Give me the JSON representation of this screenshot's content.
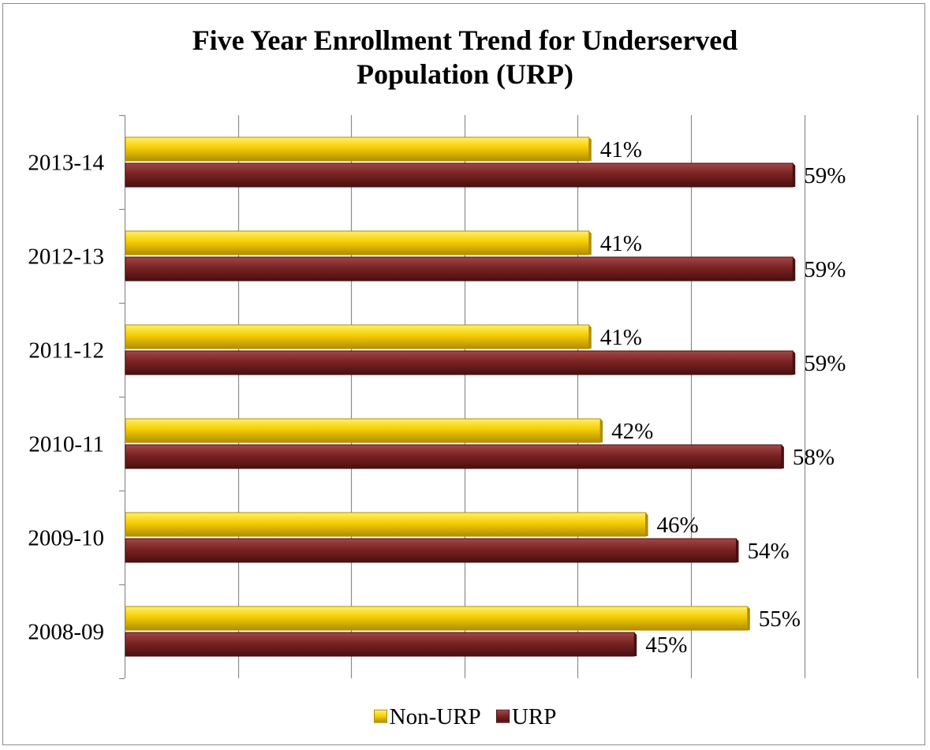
{
  "colors": {
    "non_urp": "#f5cc00",
    "non_urp_light": "#fff06a",
    "non_urp_dark": "#b08d00",
    "urp": "#7a2322",
    "urp_light": "#a14848",
    "urp_dark": "#4a0f0f",
    "grid": "#8c8c8c"
  },
  "chart_data": {
    "type": "bar",
    "orientation": "horizontal",
    "title": [
      "Five Year  Enrollment Trend for Underserved",
      "Population (URP)"
    ],
    "categories": [
      "2013-14",
      "2012-13",
      "2011-12",
      "2010-11",
      "2009-10",
      "2008-09"
    ],
    "series": [
      {
        "name": "Non-URP",
        "values": [
          41,
          41,
          41,
          42,
          46,
          55
        ],
        "labels": [
          "41%",
          "41%",
          "41%",
          "42%",
          "46%",
          "55%"
        ]
      },
      {
        "name": "URP",
        "values": [
          59,
          59,
          59,
          58,
          54,
          45
        ],
        "labels": [
          "59%",
          "59%",
          "59%",
          "58%",
          "54%",
          "45%"
        ]
      }
    ],
    "xlim": [
      0,
      70
    ],
    "x_tick_step": 10,
    "x_tick_labels_shown": false,
    "grid": "vertical",
    "legend": "bottom"
  }
}
